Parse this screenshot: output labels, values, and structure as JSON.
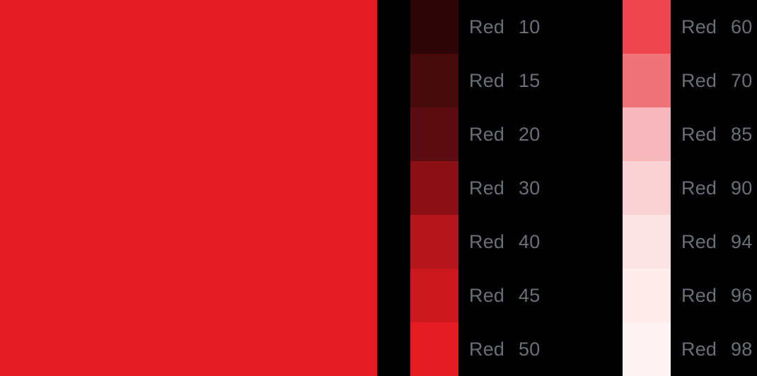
{
  "background": "#000000",
  "text_color": "#697077",
  "hero": {
    "color": "#e41b23"
  },
  "columns": [
    {
      "swatches": [
        {
          "label": "Red",
          "tone": "10",
          "color": "#2e0608"
        },
        {
          "label": "Red",
          "tone": "15",
          "color": "#460a0d"
        },
        {
          "label": "Red",
          "tone": "20",
          "color": "#5c0d11"
        },
        {
          "label": "Red",
          "tone": "30",
          "color": "#8a1016"
        },
        {
          "label": "Red",
          "tone": "40",
          "color": "#b5161c"
        },
        {
          "label": "Red",
          "tone": "45",
          "color": "#cc1920"
        },
        {
          "label": "Red",
          "tone": "50",
          "color": "#e41b23"
        }
      ]
    },
    {
      "swatches": [
        {
          "label": "Red",
          "tone": "60",
          "color": "#ee4450"
        },
        {
          "label": "Red",
          "tone": "70",
          "color": "#f0737a"
        },
        {
          "label": "Red",
          "tone": "85",
          "color": "#f6b8bc"
        },
        {
          "label": "Red",
          "tone": "90",
          "color": "#f9d1d4"
        },
        {
          "label": "Red",
          "tone": "94",
          "color": "#fbe3e4"
        },
        {
          "label": "Red",
          "tone": "96",
          "color": "#fdeceb"
        },
        {
          "label": "Red",
          "tone": "98",
          "color": "#fff4f5"
        }
      ]
    }
  ]
}
